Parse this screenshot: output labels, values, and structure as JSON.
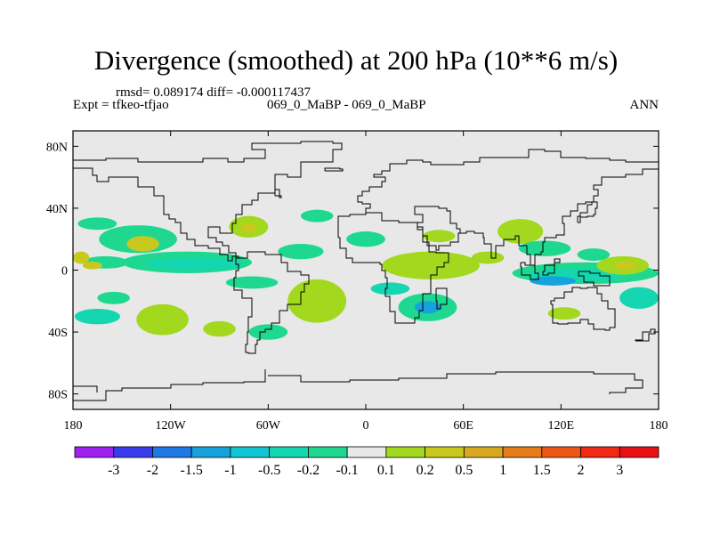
{
  "title": "Divergence (smoothed) at 200 hPa (10**6 m/s)",
  "rmsd_text": "rmsd= 0.089174 diff= -0.000117437",
  "expt_text": "Expt = tfkeo-tfjao",
  "center_text": "069_0_MaBP - 069_0_MaBP",
  "season": "ANN",
  "chart_data": {
    "type": "heatmap",
    "title": "Divergence (smoothed) at 200 hPa (10**6 m/s)",
    "x_range": [
      -180,
      180
    ],
    "y_range": [
      -90,
      90
    ],
    "x_ticks": [
      {
        "value": -180,
        "label": "180"
      },
      {
        "value": -120,
        "label": "120W"
      },
      {
        "value": -60,
        "label": "60W"
      },
      {
        "value": 0,
        "label": "0"
      },
      {
        "value": 60,
        "label": "60E"
      },
      {
        "value": 120,
        "label": "120E"
      },
      {
        "value": 180,
        "label": "180"
      }
    ],
    "y_ticks": [
      {
        "value": 80,
        "label": "80N"
      },
      {
        "value": 40,
        "label": "40N"
      },
      {
        "value": 0,
        "label": "0"
      },
      {
        "value": -40,
        "label": "40S"
      },
      {
        "value": -80,
        "label": "80S"
      }
    ],
    "background_color": "#e8e8e8",
    "colorbar": {
      "labels": [
        "-3",
        "-2",
        "-1.5",
        "-1",
        "-0.5",
        "-0.2",
        "-0.1",
        "0.1",
        "0.2",
        "0.5",
        "1",
        "1.5",
        "2",
        "3"
      ],
      "colors": [
        "#a020f0",
        "#3b3bee",
        "#1e78e6",
        "#16a2dc",
        "#10c6d2",
        "#14d6b0",
        "#1ed890",
        "#e8e8e8",
        "#a2d81e",
        "#c8c81e",
        "#d8a81e",
        "#e47c18",
        "#ee5614",
        "#f02a14",
        "#e81010"
      ]
    },
    "anomalies": [
      {
        "lon": -165,
        "lat": 30,
        "rx": 12,
        "ry": 4,
        "color": "#1ed890"
      },
      {
        "lon": -140,
        "lat": 20,
        "rx": 24,
        "ry": 9,
        "color": "#1ed890"
      },
      {
        "lon": -137,
        "lat": 17,
        "rx": 10,
        "ry": 5,
        "color": "#c8c81e"
      },
      {
        "lon": -160,
        "lat": 5,
        "rx": 14,
        "ry": 4,
        "color": "#1ed890"
      },
      {
        "lon": -168,
        "lat": 3,
        "rx": 6,
        "ry": 2.5,
        "color": "#c8c81e"
      },
      {
        "lon": -110,
        "lat": 5,
        "rx": 40,
        "ry": 7,
        "color": "#1ed890"
      },
      {
        "lon": -105,
        "lat": 4,
        "rx": 30,
        "ry": 4,
        "color": "#14d6b0"
      },
      {
        "lon": -72,
        "lat": 28,
        "rx": 12,
        "ry": 7,
        "color": "#a2d81e"
      },
      {
        "lon": -72,
        "lat": 27,
        "rx": 5,
        "ry": 3,
        "color": "#c8c81e"
      },
      {
        "lon": -40,
        "lat": 12,
        "rx": 14,
        "ry": 5,
        "color": "#1ed890"
      },
      {
        "lon": -70,
        "lat": -8,
        "rx": 16,
        "ry": 4,
        "color": "#1ed890"
      },
      {
        "lon": -155,
        "lat": -18,
        "rx": 10,
        "ry": 4,
        "color": "#1ed890"
      },
      {
        "lon": -165,
        "lat": -30,
        "rx": 14,
        "ry": 5,
        "color": "#14d6b0"
      },
      {
        "lon": -125,
        "lat": -32,
        "rx": 16,
        "ry": 10,
        "color": "#a2d81e"
      },
      {
        "lon": -30,
        "lat": -20,
        "rx": 18,
        "ry": 14,
        "color": "#a2d81e"
      },
      {
        "lon": -90,
        "lat": -38,
        "rx": 10,
        "ry": 5,
        "color": "#a2d81e"
      },
      {
        "lon": -60,
        "lat": -40,
        "rx": 12,
        "ry": 5,
        "color": "#1ed890"
      },
      {
        "lon": -30,
        "lat": 35,
        "rx": 10,
        "ry": 4,
        "color": "#1ed890"
      },
      {
        "lon": 0,
        "lat": 20,
        "rx": 12,
        "ry": 5,
        "color": "#1ed890"
      },
      {
        "lon": 40,
        "lat": 3,
        "rx": 30,
        "ry": 9,
        "color": "#a2d81e"
      },
      {
        "lon": 45,
        "lat": 22,
        "rx": 10,
        "ry": 4,
        "color": "#a2d81e"
      },
      {
        "lon": 15,
        "lat": -12,
        "rx": 12,
        "ry": 4,
        "color": "#14d6b0"
      },
      {
        "lon": 38,
        "lat": -24,
        "rx": 18,
        "ry": 9,
        "color": "#1ed890"
      },
      {
        "lon": 38,
        "lat": -24,
        "rx": 8,
        "ry": 4,
        "color": "#16a2dc"
      },
      {
        "lon": 75,
        "lat": 8,
        "rx": 10,
        "ry": 4,
        "color": "#a2d81e"
      },
      {
        "lon": 95,
        "lat": 25,
        "rx": 14,
        "ry": 8,
        "color": "#a2d81e"
      },
      {
        "lon": 110,
        "lat": 14,
        "rx": 16,
        "ry": 5,
        "color": "#1ed890"
      },
      {
        "lon": 135,
        "lat": -2,
        "rx": 45,
        "ry": 7,
        "color": "#1ed890"
      },
      {
        "lon": 130,
        "lat": -3,
        "rx": 30,
        "ry": 4,
        "color": "#14d6b0"
      },
      {
        "lon": 115,
        "lat": -7,
        "rx": 14,
        "ry": 3,
        "color": "#16a2dc"
      },
      {
        "lon": 158,
        "lat": 3,
        "rx": 16,
        "ry": 6,
        "color": "#a2d81e"
      },
      {
        "lon": 160,
        "lat": 3,
        "rx": 7,
        "ry": 3,
        "color": "#c8c81e"
      },
      {
        "lon": 168,
        "lat": -18,
        "rx": 12,
        "ry": 7,
        "color": "#14d6b0"
      },
      {
        "lon": 122,
        "lat": -28,
        "rx": 10,
        "ry": 4,
        "color": "#a2d81e"
      },
      {
        "lon": 140,
        "lat": 10,
        "rx": 10,
        "ry": 4,
        "color": "#1ed890"
      },
      {
        "lon": -175,
        "lat": 8,
        "rx": 5,
        "ry": 4,
        "color": "#c8c81e"
      }
    ],
    "coastlines": [
      [
        [
          -180,
          71
        ],
        [
          -160,
          72
        ],
        [
          -140,
          70
        ],
        [
          -120,
          70
        ],
        [
          -100,
          72
        ],
        [
          -85,
          70
        ],
        [
          -75,
          72
        ],
        [
          -62,
          78
        ],
        [
          -70,
          82
        ],
        [
          -40,
          83
        ],
        [
          -20,
          82
        ],
        [
          -15,
          78
        ],
        [
          -20,
          70
        ],
        [
          -40,
          60
        ],
        [
          -48,
          62
        ],
        [
          -56,
          50
        ],
        [
          -66,
          45
        ],
        [
          -70,
          42
        ],
        [
          -76,
          36
        ],
        [
          -80,
          30
        ],
        [
          -82,
          24
        ],
        [
          -90,
          28
        ],
        [
          -97,
          26
        ],
        [
          -97,
          21
        ],
        [
          -92,
          18
        ],
        [
          -88,
          16
        ],
        [
          -84,
          11
        ],
        [
          -80,
          8
        ],
        [
          -78,
          9
        ],
        [
          -82,
          6
        ],
        [
          -85,
          10
        ],
        [
          -90,
          14
        ],
        [
          -97,
          16
        ],
        [
          -105,
          20
        ],
        [
          -110,
          24
        ],
        [
          -114,
          31
        ],
        [
          -117,
          33
        ],
        [
          -121,
          36
        ],
        [
          -124,
          41
        ],
        [
          -124,
          48
        ],
        [
          -130,
          54
        ],
        [
          -140,
          60
        ],
        [
          -152,
          60
        ],
        [
          -158,
          57
        ],
        [
          -165,
          61
        ],
        [
          -168,
          66
        ],
        [
          -180,
          66
        ]
      ],
      [
        [
          -80,
          8
        ],
        [
          -73,
          12
        ],
        [
          -62,
          10
        ],
        [
          -52,
          5
        ],
        [
          -48,
          -1
        ],
        [
          -40,
          -3
        ],
        [
          -35,
          -6
        ],
        [
          -35,
          -9
        ],
        [
          -38,
          -14
        ],
        [
          -40,
          -22
        ],
        [
          -48,
          -26
        ],
        [
          -53,
          -34
        ],
        [
          -58,
          -38
        ],
        [
          -62,
          -40
        ],
        [
          -65,
          -45
        ],
        [
          -67,
          -48
        ],
        [
          -68,
          -54
        ],
        [
          -72,
          -53
        ],
        [
          -74,
          -48
        ],
        [
          -73,
          -40
        ],
        [
          -72,
          -30
        ],
        [
          -70,
          -18
        ],
        [
          -76,
          -13
        ],
        [
          -81,
          -5
        ],
        [
          -80,
          0
        ],
        [
          -78,
          4
        ],
        [
          -80,
          8
        ]
      ],
      [
        [
          -10,
          36
        ],
        [
          -6,
          36
        ],
        [
          0,
          40
        ],
        [
          3,
          43
        ],
        [
          -2,
          44
        ],
        [
          -5,
          48
        ],
        [
          -2,
          51
        ],
        [
          2,
          54
        ],
        [
          8,
          54
        ],
        [
          10,
          57
        ],
        [
          12,
          60
        ],
        [
          5,
          62
        ],
        [
          10,
          64
        ],
        [
          15,
          69
        ],
        [
          25,
          71
        ],
        [
          35,
          70
        ],
        [
          40,
          68
        ],
        [
          45,
          68
        ],
        [
          60,
          70
        ],
        [
          70,
          73
        ],
        [
          80,
          73
        ],
        [
          100,
          78
        ],
        [
          110,
          77
        ],
        [
          120,
          73
        ],
        [
          135,
          72
        ],
        [
          150,
          71
        ],
        [
          160,
          70
        ],
        [
          170,
          70
        ],
        [
          180,
          68
        ]
      ],
      [
        [
          -17,
          21
        ],
        [
          -16,
          14
        ],
        [
          -12,
          8
        ],
        [
          -8,
          5
        ],
        [
          0,
          5
        ],
        [
          5,
          5
        ],
        [
          9,
          4
        ],
        [
          10,
          0
        ],
        [
          12,
          -5
        ],
        [
          13,
          -12
        ],
        [
          12,
          -17
        ],
        [
          15,
          -27
        ],
        [
          18,
          -34
        ],
        [
          25,
          -34
        ],
        [
          30,
          -31
        ],
        [
          33,
          -26
        ],
        [
          35,
          -22
        ],
        [
          35,
          -15
        ],
        [
          40,
          -10
        ],
        [
          40,
          -3
        ],
        [
          44,
          2
        ],
        [
          48,
          5
        ],
        [
          51,
          11
        ],
        [
          43,
          12
        ],
        [
          39,
          18
        ],
        [
          35,
          26
        ],
        [
          32,
          31
        ],
        [
          20,
          32
        ],
        [
          10,
          37
        ],
        [
          0,
          36
        ],
        [
          -10,
          35
        ],
        [
          -17,
          21
        ]
      ],
      [
        [
          43,
          -12
        ],
        [
          50,
          -15
        ],
        [
          50,
          -22
        ],
        [
          46,
          -25
        ],
        [
          44,
          -20
        ],
        [
          43,
          -12
        ]
      ],
      [
        [
          32,
          31
        ],
        [
          35,
          36
        ],
        [
          30,
          41
        ],
        [
          40,
          41
        ],
        [
          45,
          40
        ],
        [
          50,
          38
        ],
        [
          52,
          30
        ],
        [
          56,
          27
        ],
        [
          58,
          24
        ],
        [
          57,
          18
        ],
        [
          52,
          16
        ],
        [
          45,
          13
        ],
        [
          43,
          16
        ],
        [
          38,
          22
        ],
        [
          35,
          28
        ],
        [
          32,
          31
        ]
      ],
      [
        [
          58,
          24
        ],
        [
          62,
          25
        ],
        [
          67,
          24
        ],
        [
          72,
          21
        ],
        [
          73,
          17
        ],
        [
          77,
          8
        ],
        [
          80,
          12
        ],
        [
          80,
          16
        ],
        [
          85,
          20
        ],
        [
          92,
          22
        ],
        [
          94,
          16
        ],
        [
          98,
          16
        ],
        [
          99,
          10
        ],
        [
          101,
          3
        ],
        [
          104,
          1
        ],
        [
          104,
          10
        ],
        [
          108,
          12
        ],
        [
          109,
          18
        ],
        [
          110,
          21
        ],
        [
          117,
          23
        ],
        [
          122,
          30
        ],
        [
          121,
          35
        ],
        [
          126,
          38
        ],
        [
          130,
          43
        ],
        [
          135,
          44
        ],
        [
          140,
          48
        ],
        [
          143,
          52
        ],
        [
          140,
          55
        ],
        [
          145,
          60
        ],
        [
          155,
          60
        ],
        [
          160,
          62
        ],
        [
          170,
          65
        ],
        [
          180,
          66
        ]
      ],
      [
        [
          114,
          -22
        ],
        [
          115,
          -34
        ],
        [
          118,
          -35
        ],
        [
          124,
          -34
        ],
        [
          132,
          -32
        ],
        [
          137,
          -35
        ],
        [
          140,
          -38
        ],
        [
          147,
          -39
        ],
        [
          150,
          -37
        ],
        [
          153,
          -30
        ],
        [
          153,
          -25
        ],
        [
          149,
          -20
        ],
        [
          145,
          -15
        ],
        [
          142,
          -11
        ],
        [
          136,
          -12
        ],
        [
          132,
          -11
        ],
        [
          127,
          -14
        ],
        [
          122,
          -18
        ],
        [
          116,
          -20
        ],
        [
          114,
          -22
        ]
      ],
      [
        [
          95,
          5
        ],
        [
          98,
          3
        ],
        [
          104,
          -2
        ],
        [
          106,
          -6
        ],
        [
          101,
          -3
        ],
        [
          96,
          2
        ],
        [
          95,
          5
        ]
      ],
      [
        [
          109,
          -1
        ],
        [
          110,
          3
        ],
        [
          116,
          7
        ],
        [
          119,
          5
        ],
        [
          116,
          -2
        ],
        [
          112,
          -3
        ],
        [
          109,
          -1
        ]
      ],
      [
        [
          131,
          -1
        ],
        [
          138,
          -2
        ],
        [
          144,
          -4
        ],
        [
          150,
          -10
        ],
        [
          140,
          -8
        ],
        [
          134,
          -4
        ],
        [
          131,
          -1
        ]
      ],
      [
        [
          130,
          31
        ],
        [
          132,
          34
        ],
        [
          136,
          35
        ],
        [
          140,
          36
        ],
        [
          141,
          40
        ],
        [
          142,
          44
        ],
        [
          139,
          42
        ],
        [
          136,
          37
        ],
        [
          132,
          35
        ],
        [
          130,
          31
        ]
      ],
      [
        [
          -56,
          48
        ],
        [
          -52,
          47
        ],
        [
          -53,
          52
        ],
        [
          -56,
          51
        ],
        [
          -56,
          48
        ]
      ],
      [
        [
          -25,
          64
        ],
        [
          -14,
          65
        ],
        [
          -16,
          66
        ],
        [
          -22,
          66
        ],
        [
          -25,
          64
        ]
      ],
      [
        [
          -60,
          -68
        ],
        [
          -40,
          -72
        ],
        [
          -10,
          -71
        ],
        [
          20,
          -70
        ],
        [
          50,
          -67
        ],
        [
          80,
          -66
        ],
        [
          110,
          -66
        ],
        [
          140,
          -67
        ],
        [
          165,
          -71
        ],
        [
          170,
          -76
        ],
        [
          160,
          -79
        ],
        [
          150,
          -80
        ]
      ],
      [
        [
          -180,
          -84
        ],
        [
          -160,
          -78
        ],
        [
          -150,
          -76
        ],
        [
          -120,
          -74
        ],
        [
          -100,
          -73
        ],
        [
          -75,
          -72
        ],
        [
          -62,
          -64
        ]
      ],
      [
        [
          166,
          -46
        ],
        [
          174,
          -41
        ],
        [
          178,
          -38
        ],
        [
          175,
          -40
        ],
        [
          170,
          -45
        ],
        [
          166,
          -46
        ]
      ],
      [
        [
          -180,
          -75
        ],
        [
          -165,
          -79
        ]
      ]
    ]
  }
}
